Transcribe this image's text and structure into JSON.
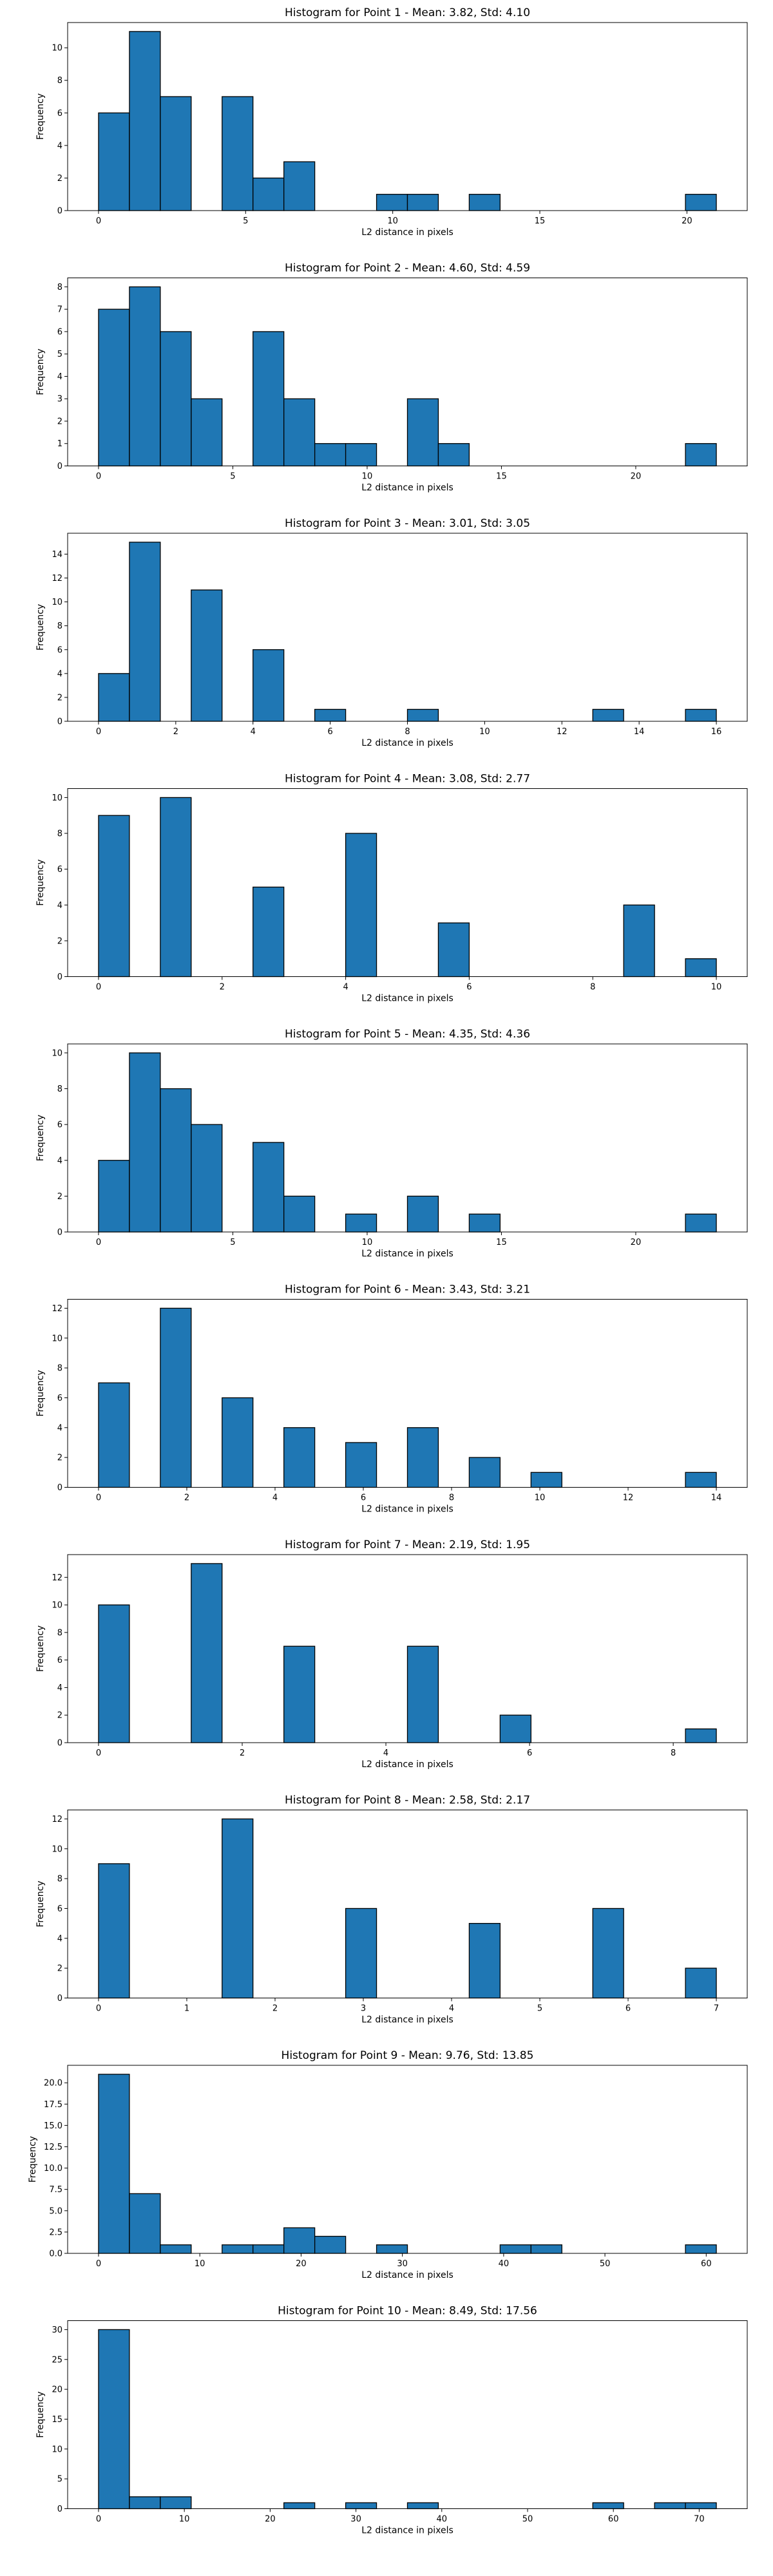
{
  "chart_data": [
    {
      "type": "bar",
      "title": "Histogram for Point 1 - Mean: 3.82, Std: 4.10",
      "xlabel": "L2 distance in pixels",
      "ylabel": "Frequency",
      "xlim": [
        -1.05,
        22.05
      ],
      "ylim": [
        0,
        11.55
      ],
      "xticks": [
        0,
        5,
        10,
        15,
        20
      ],
      "yticks": [
        0,
        2,
        4,
        6,
        8,
        10
      ],
      "bins": [
        {
          "x0": 0.0,
          "x1": 1.05,
          "count": 6
        },
        {
          "x0": 1.05,
          "x1": 2.1,
          "count": 11
        },
        {
          "x0": 2.1,
          "x1": 3.15,
          "count": 7
        },
        {
          "x0": 4.2,
          "x1": 5.25,
          "count": 7
        },
        {
          "x0": 5.25,
          "x1": 6.3,
          "count": 2
        },
        {
          "x0": 6.3,
          "x1": 7.35,
          "count": 3
        },
        {
          "x0": 9.45,
          "x1": 10.5,
          "count": 1
        },
        {
          "x0": 10.5,
          "x1": 11.55,
          "count": 1
        },
        {
          "x0": 12.6,
          "x1": 13.65,
          "count": 1
        },
        {
          "x0": 19.95,
          "x1": 21.0,
          "count": 1
        }
      ]
    },
    {
      "type": "bar",
      "title": "Histogram for Point 2 - Mean: 4.60, Std: 4.59",
      "xlabel": "L2 distance in pixels",
      "ylabel": "Frequency",
      "xlim": [
        -1.15,
        24.15
      ],
      "ylim": [
        0,
        8.4
      ],
      "xticks": [
        0,
        5,
        10,
        15,
        20
      ],
      "yticks": [
        0,
        1,
        2,
        3,
        4,
        5,
        6,
        7,
        8
      ],
      "bins": [
        {
          "x0": 0.0,
          "x1": 1.15,
          "count": 7
        },
        {
          "x0": 1.15,
          "x1": 2.3,
          "count": 8
        },
        {
          "x0": 2.3,
          "x1": 3.45,
          "count": 6
        },
        {
          "x0": 3.45,
          "x1": 4.6,
          "count": 3
        },
        {
          "x0": 5.75,
          "x1": 6.9,
          "count": 6
        },
        {
          "x0": 6.9,
          "x1": 8.05,
          "count": 3
        },
        {
          "x0": 8.05,
          "x1": 9.2,
          "count": 1
        },
        {
          "x0": 9.2,
          "x1": 10.35,
          "count": 1
        },
        {
          "x0": 11.5,
          "x1": 12.65,
          "count": 3
        },
        {
          "x0": 12.65,
          "x1": 13.8,
          "count": 1
        },
        {
          "x0": 21.85,
          "x1": 23.0,
          "count": 1
        }
      ]
    },
    {
      "type": "bar",
      "title": "Histogram for Point 3 - Mean: 3.01, Std: 3.05",
      "xlabel": "L2 distance in pixels",
      "ylabel": "Frequency",
      "xlim": [
        -0.8,
        16.8
      ],
      "ylim": [
        0,
        15.75
      ],
      "xticks": [
        0,
        2,
        4,
        6,
        8,
        10,
        12,
        14,
        16
      ],
      "yticks": [
        0,
        2,
        4,
        6,
        8,
        10,
        12,
        14
      ],
      "bins": [
        {
          "x0": 0.0,
          "x1": 0.8,
          "count": 4
        },
        {
          "x0": 0.8,
          "x1": 1.6,
          "count": 15
        },
        {
          "x0": 2.4,
          "x1": 3.2,
          "count": 11
        },
        {
          "x0": 4.0,
          "x1": 4.8,
          "count": 6
        },
        {
          "x0": 5.6,
          "x1": 6.4,
          "count": 1
        },
        {
          "x0": 8.0,
          "x1": 8.8,
          "count": 1
        },
        {
          "x0": 12.8,
          "x1": 13.6,
          "count": 1
        },
        {
          "x0": 15.2,
          "x1": 16.0,
          "count": 1
        }
      ]
    },
    {
      "type": "bar",
      "title": "Histogram for Point 4 - Mean: 3.08, Std: 2.77",
      "xlabel": "L2 distance in pixels",
      "ylabel": "Frequency",
      "xlim": [
        -0.5,
        10.5
      ],
      "ylim": [
        0,
        10.5
      ],
      "xticks": [
        0,
        2,
        4,
        6,
        8,
        10
      ],
      "yticks": [
        0,
        2,
        4,
        6,
        8,
        10
      ],
      "bins": [
        {
          "x0": 0.0,
          "x1": 0.5,
          "count": 9
        },
        {
          "x0": 1.0,
          "x1": 1.5,
          "count": 10
        },
        {
          "x0": 2.5,
          "x1": 3.0,
          "count": 5
        },
        {
          "x0": 4.0,
          "x1": 4.5,
          "count": 8
        },
        {
          "x0": 5.5,
          "x1": 6.0,
          "count": 3
        },
        {
          "x0": 8.5,
          "x1": 9.0,
          "count": 4
        },
        {
          "x0": 9.5,
          "x1": 10.0,
          "count": 1
        }
      ]
    },
    {
      "type": "bar",
      "title": "Histogram for Point 5 - Mean: 4.35, Std: 4.36",
      "xlabel": "L2 distance in pixels",
      "ylabel": "Frequency",
      "xlim": [
        -1.15,
        24.15
      ],
      "ylim": [
        0,
        10.5
      ],
      "xticks": [
        0,
        5,
        10,
        15,
        20
      ],
      "yticks": [
        0,
        2,
        4,
        6,
        8,
        10
      ],
      "bins": [
        {
          "x0": 0.0,
          "x1": 1.15,
          "count": 4
        },
        {
          "x0": 1.15,
          "x1": 2.3,
          "count": 10
        },
        {
          "x0": 2.3,
          "x1": 3.45,
          "count": 8
        },
        {
          "x0": 3.45,
          "x1": 4.6,
          "count": 6
        },
        {
          "x0": 5.75,
          "x1": 6.9,
          "count": 5
        },
        {
          "x0": 6.9,
          "x1": 8.05,
          "count": 2
        },
        {
          "x0": 9.2,
          "x1": 10.35,
          "count": 1
        },
        {
          "x0": 11.5,
          "x1": 12.65,
          "count": 2
        },
        {
          "x0": 13.8,
          "x1": 14.95,
          "count": 1
        },
        {
          "x0": 21.85,
          "x1": 23.0,
          "count": 1
        }
      ]
    },
    {
      "type": "bar",
      "title": "Histogram for Point 6 - Mean: 3.43, Std: 3.21",
      "xlabel": "L2 distance in pixels",
      "ylabel": "Frequency",
      "xlim": [
        -0.7,
        14.7
      ],
      "ylim": [
        0,
        12.6
      ],
      "xticks": [
        0,
        2,
        4,
        6,
        8,
        10,
        12,
        14
      ],
      "yticks": [
        0,
        2,
        4,
        6,
        8,
        10,
        12
      ],
      "bins": [
        {
          "x0": 0.0,
          "x1": 0.7,
          "count": 7
        },
        {
          "x0": 1.4,
          "x1": 2.1,
          "count": 12
        },
        {
          "x0": 2.8,
          "x1": 3.5,
          "count": 6
        },
        {
          "x0": 4.2,
          "x1": 4.9,
          "count": 4
        },
        {
          "x0": 5.6,
          "x1": 6.3,
          "count": 3
        },
        {
          "x0": 7.0,
          "x1": 7.7,
          "count": 4
        },
        {
          "x0": 8.4,
          "x1": 9.1,
          "count": 2
        },
        {
          "x0": 9.8,
          "x1": 10.5,
          "count": 1
        },
        {
          "x0": 13.3,
          "x1": 14.0,
          "count": 1
        }
      ]
    },
    {
      "type": "bar",
      "title": "Histogram for Point 7 - Mean: 2.19, Std: 1.95",
      "xlabel": "L2 distance in pixels",
      "ylabel": "Frequency",
      "xlim": [
        -0.43,
        9.03
      ],
      "ylim": [
        0,
        13.65
      ],
      "xticks": [
        0,
        2,
        4,
        6,
        8
      ],
      "yticks": [
        0,
        2,
        4,
        6,
        8,
        10,
        12
      ],
      "bins": [
        {
          "x0": 0.0,
          "x1": 0.43,
          "count": 10
        },
        {
          "x0": 1.29,
          "x1": 1.72,
          "count": 13
        },
        {
          "x0": 2.58,
          "x1": 3.01,
          "count": 7
        },
        {
          "x0": 4.3,
          "x1": 4.73,
          "count": 7
        },
        {
          "x0": 5.59,
          "x1": 6.02,
          "count": 2
        },
        {
          "x0": 8.17,
          "x1": 8.6,
          "count": 1
        }
      ]
    },
    {
      "type": "bar",
      "title": "Histogram for Point 8 - Mean: 2.58, Std: 2.17",
      "xlabel": "L2 distance in pixels",
      "ylabel": "Frequency",
      "xlim": [
        -0.35,
        7.35
      ],
      "ylim": [
        0,
        12.6
      ],
      "xticks": [
        0,
        1,
        2,
        3,
        4,
        5,
        6,
        7
      ],
      "yticks": [
        0,
        2,
        4,
        6,
        8,
        10,
        12
      ],
      "bins": [
        {
          "x0": 0.0,
          "x1": 0.35,
          "count": 9
        },
        {
          "x0": 1.4,
          "x1": 1.75,
          "count": 12
        },
        {
          "x0": 2.8,
          "x1": 3.15,
          "count": 6
        },
        {
          "x0": 4.2,
          "x1": 4.55,
          "count": 5
        },
        {
          "x0": 5.6,
          "x1": 5.95,
          "count": 6
        },
        {
          "x0": 6.65,
          "x1": 7.0,
          "count": 2
        }
      ]
    },
    {
      "type": "bar",
      "title": "Histogram for Point 9 - Mean: 9.76, Std: 13.85",
      "xlabel": "L2 distance in pixels",
      "ylabel": "Frequency",
      "xlim": [
        -3.05,
        64.05
      ],
      "ylim": [
        0,
        22.05
      ],
      "xticks": [
        0,
        10,
        20,
        30,
        40,
        50,
        60
      ],
      "yticks": [
        0.0,
        2.5,
        5.0,
        7.5,
        10.0,
        12.5,
        15.0,
        17.5,
        20.0
      ],
      "ytick_labels": [
        "0.0",
        "2.5",
        "5.0",
        "7.5",
        "10.0",
        "12.5",
        "15.0",
        "17.5",
        "20.0"
      ],
      "bins": [
        {
          "x0": 0.0,
          "x1": 3.05,
          "count": 21
        },
        {
          "x0": 3.05,
          "x1": 6.1,
          "count": 7
        },
        {
          "x0": 6.1,
          "x1": 9.15,
          "count": 1
        },
        {
          "x0": 12.2,
          "x1": 15.25,
          "count": 1
        },
        {
          "x0": 15.25,
          "x1": 18.3,
          "count": 1
        },
        {
          "x0": 18.3,
          "x1": 21.35,
          "count": 3
        },
        {
          "x0": 21.35,
          "x1": 24.4,
          "count": 2
        },
        {
          "x0": 27.45,
          "x1": 30.5,
          "count": 1
        },
        {
          "x0": 39.65,
          "x1": 42.7,
          "count": 1
        },
        {
          "x0": 42.7,
          "x1": 45.75,
          "count": 1
        },
        {
          "x0": 57.95,
          "x1": 61.0,
          "count": 1
        }
      ]
    },
    {
      "type": "bar",
      "title": "Histogram for Point 10 - Mean: 8.49, Std: 17.56",
      "xlabel": "L2 distance in pixels",
      "ylabel": "Frequency",
      "xlim": [
        -3.6,
        75.6
      ],
      "ylim": [
        0,
        31.5
      ],
      "xticks": [
        0,
        10,
        20,
        30,
        40,
        50,
        60,
        70
      ],
      "yticks": [
        0,
        5,
        10,
        15,
        20,
        25,
        30
      ],
      "bins": [
        {
          "x0": 0.0,
          "x1": 3.6,
          "count": 30
        },
        {
          "x0": 3.6,
          "x1": 7.2,
          "count": 2
        },
        {
          "x0": 7.2,
          "x1": 10.8,
          "count": 2
        },
        {
          "x0": 21.6,
          "x1": 25.2,
          "count": 1
        },
        {
          "x0": 28.8,
          "x1": 32.4,
          "count": 1
        },
        {
          "x0": 36.0,
          "x1": 39.6,
          "count": 1
        },
        {
          "x0": 57.6,
          "x1": 61.2,
          "count": 1
        },
        {
          "x0": 64.8,
          "x1": 68.4,
          "count": 1
        },
        {
          "x0": 68.4,
          "x1": 72.0,
          "count": 1
        }
      ]
    }
  ]
}
